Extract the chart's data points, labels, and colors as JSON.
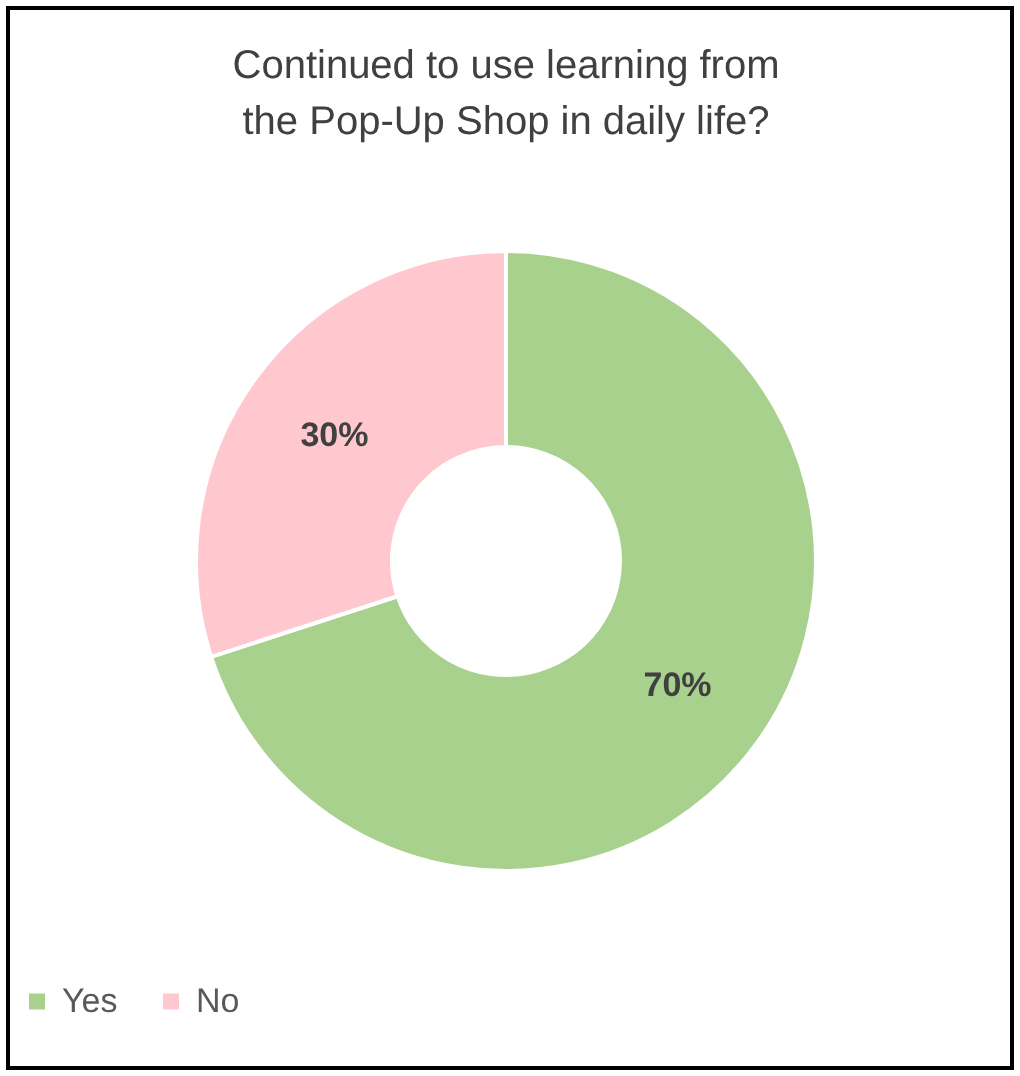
{
  "chart_data": {
    "type": "donut",
    "title": "Continued to use learning from the Pop-Up Shop in daily life?",
    "categories": [
      "Yes",
      "No"
    ],
    "values": [
      70,
      30
    ],
    "colors": [
      "#a9d18e",
      "#ffc7ce"
    ],
    "value_labels": [
      "70%",
      "30%"
    ],
    "legend": "bottom"
  }
}
